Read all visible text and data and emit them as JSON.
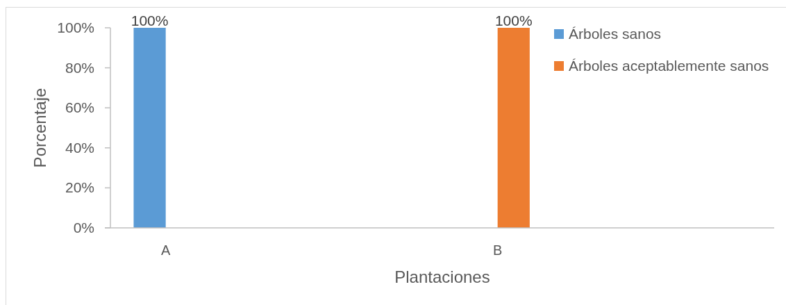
{
  "chart_data": {
    "type": "bar",
    "xlabel": "Plantaciones",
    "ylabel": "Porcentaje",
    "categories": [
      "A",
      null,
      null,
      "B",
      null,
      null
    ],
    "series": [
      {
        "name": "Árboles sanos",
        "color": "#5b9bd5",
        "values": [
          100,
          null,
          null,
          null,
          null,
          null
        ],
        "value_labels": [
          "100%",
          null,
          null,
          null,
          null,
          null
        ]
      },
      {
        "name": "Árboles aceptablemente sanos",
        "color": "#ed7d31",
        "values": [
          null,
          null,
          null,
          100,
          null,
          null
        ],
        "value_labels": [
          null,
          null,
          null,
          "100%",
          null,
          null
        ]
      }
    ],
    "ylim": [
      0,
      100
    ],
    "yticks": [
      {
        "value": 0,
        "label": "0%"
      },
      {
        "value": 20,
        "label": "20%"
      },
      {
        "value": 40,
        "label": "40%"
      },
      {
        "value": 60,
        "label": "60%"
      },
      {
        "value": 80,
        "label": "80%"
      },
      {
        "value": 100,
        "label": "100%"
      }
    ],
    "legend": "top right"
  }
}
